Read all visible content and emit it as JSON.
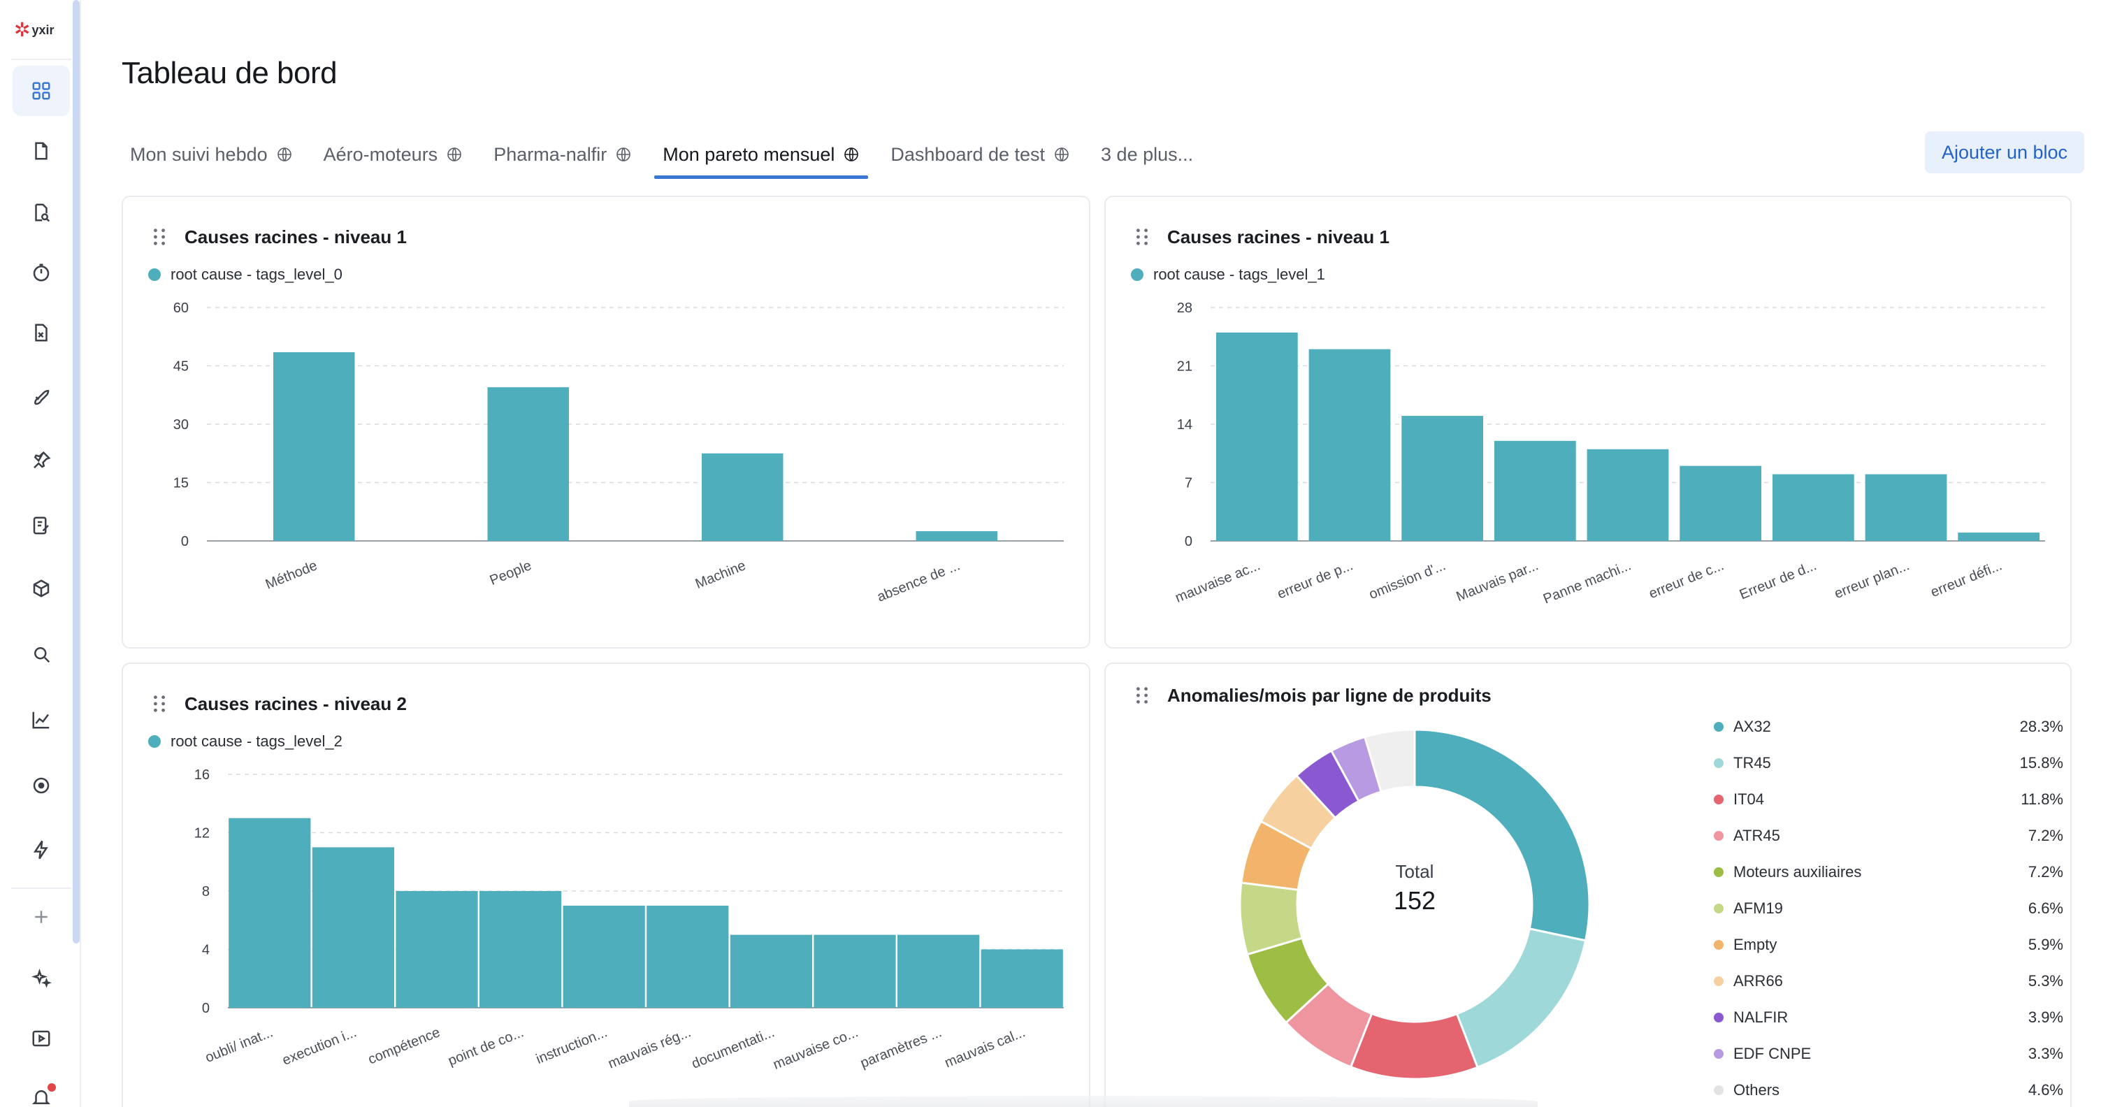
{
  "app": {
    "logo_text": "yxir"
  },
  "sidebar": {
    "items": [
      {
        "name": "dashboard-icon"
      },
      {
        "name": "document-icon"
      },
      {
        "name": "document-search-icon"
      },
      {
        "name": "timer-icon"
      },
      {
        "name": "file-excel-icon"
      },
      {
        "name": "rocket-icon"
      },
      {
        "name": "pin-icon"
      },
      {
        "name": "notes-edit-icon"
      },
      {
        "name": "cube-icon"
      },
      {
        "name": "search-icon"
      },
      {
        "name": "line-chart-icon"
      },
      {
        "name": "target-icon"
      },
      {
        "name": "lightning-icon"
      },
      {
        "name": "plus-icon"
      },
      {
        "name": "sparkles-icon"
      },
      {
        "name": "play-icon"
      },
      {
        "name": "bell-icon"
      }
    ]
  },
  "header": {
    "title": "Tableau de bord",
    "add_block_label": "Ajouter un bloc",
    "tabs": [
      {
        "label": "Mon suivi hebdo",
        "globe": true,
        "active": false
      },
      {
        "label": "Aéro-moteurs",
        "globe": true,
        "active": false
      },
      {
        "label": "Pharma-nalfir",
        "globe": true,
        "active": false
      },
      {
        "label": "Mon pareto mensuel",
        "globe": true,
        "active": true
      },
      {
        "label": "Dashboard de test",
        "globe": true,
        "active": false
      },
      {
        "label": "3 de plus...",
        "globe": false,
        "active": false
      }
    ]
  },
  "colors": {
    "bar": "#4eaebb",
    "accent": "#3a78d4"
  },
  "chart_data": [
    {
      "type": "bar",
      "title": "Causes racines - niveau 1",
      "legend": "root cause - tags_level_0",
      "categories": [
        "Méthode",
        "People",
        "Machine",
        "absence de ..."
      ],
      "values": [
        48.5,
        39.5,
        22.5,
        2.5
      ],
      "yticks": [
        0,
        15,
        30,
        45,
        60
      ],
      "ylim": [
        0,
        60
      ]
    },
    {
      "type": "bar",
      "title": "Causes racines - niveau 1",
      "legend": "root cause - tags_level_1",
      "categories": [
        "mauvaise ac...",
        "erreur de p...",
        "omission d'...",
        "Mauvais par...",
        "Panne machi...",
        "erreur de c...",
        "Erreur de d...",
        "erreur plan...",
        "erreur défi..."
      ],
      "values": [
        25,
        23,
        15,
        12,
        11,
        9,
        8,
        8,
        1
      ],
      "yticks": [
        0,
        7,
        14,
        21,
        28
      ],
      "ylim": [
        0,
        28
      ]
    },
    {
      "type": "bar",
      "title": "Causes racines - niveau 2",
      "legend": "root cause - tags_level_2",
      "categories": [
        "oubli/ inat...",
        "execution i...",
        "compétence",
        "point de co...",
        "instruction...",
        "mauvais rég...",
        "documentati...",
        "mauvaise co...",
        "paramètres ...",
        "mauvais cal..."
      ],
      "values": [
        13,
        11,
        8,
        8,
        7,
        7,
        5,
        5,
        5,
        4
      ],
      "yticks": [
        0,
        4,
        8,
        12,
        16
      ],
      "ylim": [
        0,
        16
      ]
    },
    {
      "type": "pie",
      "title": "Anomalies/mois par ligne de produits",
      "total_label": "Total",
      "total_value": "152",
      "slices": [
        {
          "label": "AX32",
          "pct": "28.3%",
          "value": 28.3,
          "color": "#4eaebb"
        },
        {
          "label": "TR45",
          "pct": "15.8%",
          "value": 15.8,
          "color": "#9fd8d8"
        },
        {
          "label": "IT04",
          "pct": "11.8%",
          "value": 11.8,
          "color": "#e46470"
        },
        {
          "label": "ATR45",
          "pct": "7.2%",
          "value": 7.2,
          "color": "#ef95a0"
        },
        {
          "label": "Moteurs auxiliaires",
          "pct": "7.2%",
          "value": 7.2,
          "color": "#9ebd45"
        },
        {
          "label": "AFM19",
          "pct": "6.6%",
          "value": 6.6,
          "color": "#c4d888"
        },
        {
          "label": "Empty",
          "pct": "5.9%",
          "value": 5.9,
          "color": "#f2b36a"
        },
        {
          "label": "ARR66",
          "pct": "5.3%",
          "value": 5.3,
          "color": "#f7d0a0"
        },
        {
          "label": "NALFIR",
          "pct": "3.9%",
          "value": 3.9,
          "color": "#8a58d0"
        },
        {
          "label": "EDF CNPE",
          "pct": "3.3%",
          "value": 3.3,
          "color": "#b89ae3"
        },
        {
          "label": "Others",
          "pct": "4.6%",
          "value": 4.6,
          "color": "#efefef"
        }
      ]
    }
  ]
}
